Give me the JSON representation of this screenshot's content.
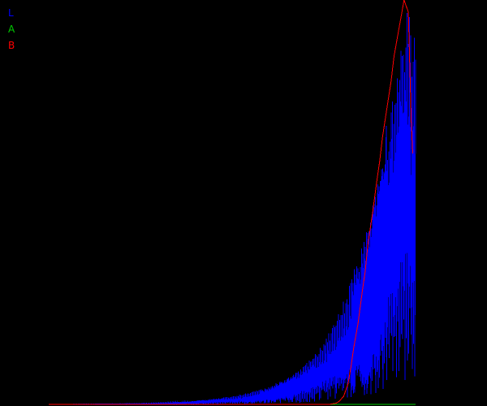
{
  "chart_data": {
    "type": "line",
    "legend": [
      {
        "key": "L",
        "label": "L",
        "color": "#0000ff"
      },
      {
        "key": "A",
        "label": "A",
        "color": "#00cc00"
      },
      {
        "key": "B",
        "label": "B",
        "color": "#ff0000"
      }
    ],
    "legend_placement": "top-left",
    "background": "#000000",
    "grid": false,
    "axes_visible": false,
    "x_range": [
      0,
      255
    ],
    "y_range": [
      0,
      1
    ],
    "series": [
      {
        "key": "L",
        "color": "#0000ff",
        "style": "spiky",
        "x": [
          0,
          60,
          80,
          100,
          110,
          120,
          130,
          140,
          150,
          160,
          170,
          175,
          180,
          185,
          190,
          195,
          200,
          205,
          210,
          215,
          220,
          225,
          230,
          235,
          240,
          245,
          250,
          255
        ],
        "y": [
          0,
          0.002,
          0.004,
          0.008,
          0.012,
          0.016,
          0.022,
          0.03,
          0.04,
          0.055,
          0.075,
          0.088,
          0.105,
          0.125,
          0.15,
          0.18,
          0.215,
          0.255,
          0.305,
          0.365,
          0.43,
          0.51,
          0.6,
          0.7,
          0.8,
          0.9,
          1.0,
          0.9
        ]
      },
      {
        "key": "A",
        "color": "#00cc00",
        "style": "line",
        "x": [
          0,
          255
        ],
        "y": [
          0,
          0
        ]
      },
      {
        "key": "B",
        "color": "#ff0000",
        "style": "line",
        "x": [
          0,
          195,
          200,
          202,
          205,
          208,
          210,
          212,
          215,
          218,
          220,
          222,
          225,
          228,
          230,
          232,
          235,
          238,
          240,
          243,
          245,
          247,
          250,
          252,
          253
        ],
        "y": [
          0,
          0,
          0.003,
          0.008,
          0.02,
          0.05,
          0.09,
          0.14,
          0.2,
          0.28,
          0.33,
          0.4,
          0.47,
          0.55,
          0.6,
          0.66,
          0.73,
          0.8,
          0.86,
          0.92,
          0.96,
          1.0,
          0.97,
          0.7,
          0.62
        ]
      }
    ]
  }
}
